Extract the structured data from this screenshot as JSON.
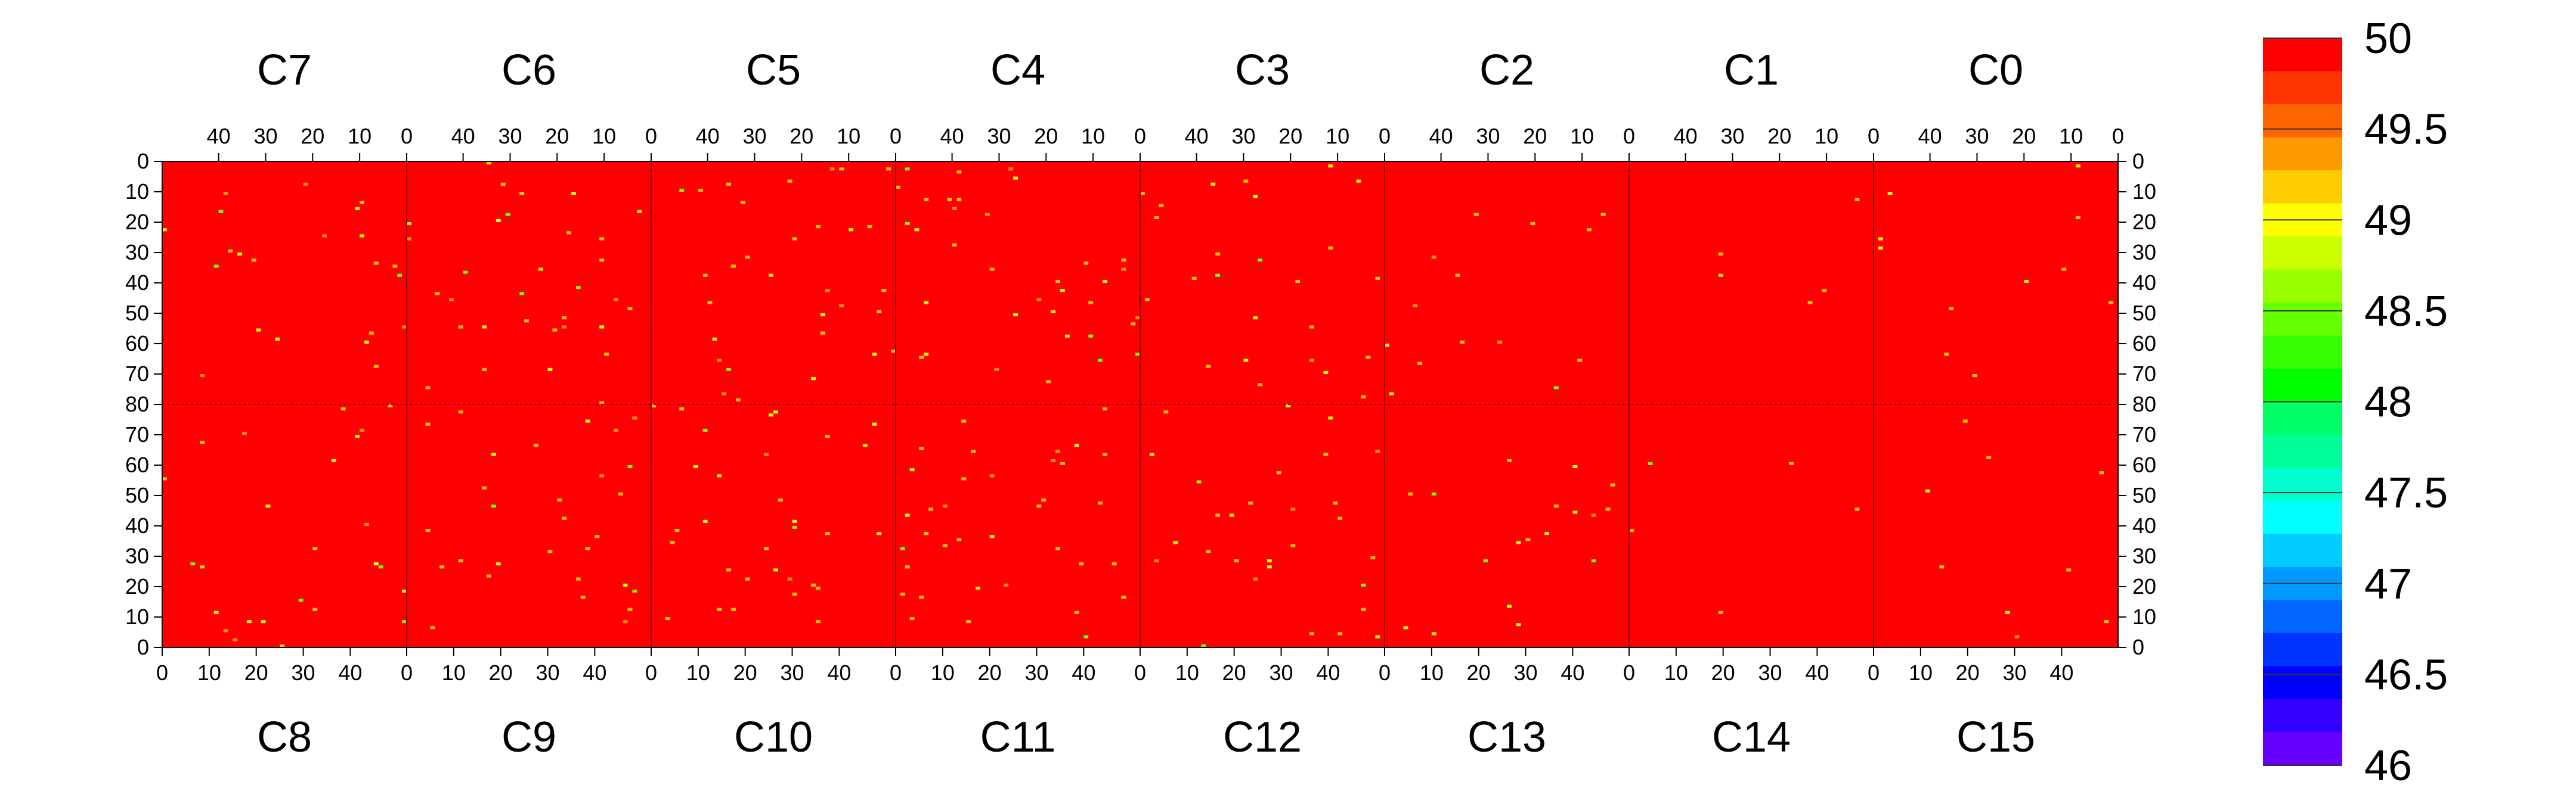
{
  "chart_data": {
    "type": "heatmap",
    "title": "",
    "xlabel": "",
    "ylabel": "",
    "grid": true,
    "background_value": 50,
    "color_scale": {
      "min": 46,
      "max": 50,
      "tick_labels": [
        "50",
        "49.5",
        "49",
        "48.5",
        "48",
        "47.5",
        "47",
        "46.5",
        "46"
      ],
      "tick_values": [
        50,
        49.5,
        49,
        48.5,
        48,
        47.5,
        47,
        46.5,
        46
      ],
      "colors": [
        "#ff0000",
        "#ff3300",
        "#ff6600",
        "#ff9900",
        "#ffcc00",
        "#ffff00",
        "#ccff00",
        "#99ff00",
        "#66ff00",
        "#33ff00",
        "#00ff00",
        "#00ff66",
        "#00ff99",
        "#00ffcc",
        "#00ffff",
        "#00ccff",
        "#0099ff",
        "#0066ff",
        "#0033ff",
        "#0000ff",
        "#3300ff",
        "#6600ff"
      ]
    },
    "top_row": {
      "chips": [
        "C7",
        "C6",
        "C5",
        "C4",
        "C3",
        "C2",
        "C1",
        "C0"
      ],
      "x_tick_labels": [
        "40",
        "30",
        "20",
        "10",
        "0"
      ],
      "x_tick_values": [
        40,
        30,
        20,
        10,
        0
      ],
      "x_direction": "reversed",
      "x_range": [
        0,
        52
      ]
    },
    "bottom_row": {
      "chips": [
        "C8",
        "C9",
        "C10",
        "C11",
        "C12",
        "C13",
        "C14",
        "C15"
      ],
      "x_tick_labels": [
        "0",
        "10",
        "20",
        "30",
        "40"
      ],
      "x_tick_values": [
        0,
        10,
        20,
        30,
        40
      ],
      "x_direction": "normal",
      "x_range": [
        0,
        52
      ]
    },
    "y_axis": {
      "top_half_labels": [
        "0",
        "10",
        "20",
        "30",
        "40",
        "50",
        "60",
        "70",
        "80"
      ],
      "top_half_values": [
        0,
        10,
        20,
        30,
        40,
        50,
        60,
        70,
        80
      ],
      "bottom_half_labels": [
        "70",
        "60",
        "50",
        "40",
        "30",
        "20",
        "10",
        "0"
      ],
      "bottom_half_values": [
        70,
        60,
        50,
        40,
        30,
        20,
        10,
        0
      ],
      "y_range": [
        0,
        80
      ]
    },
    "pixel_density_per_chip": [
      0.06,
      0.09,
      0.09,
      0.1,
      0.07,
      0.04,
      0.015,
      0.03,
      0.07,
      0.08,
      0.09,
      0.1,
      0.08,
      0.05,
      0.015,
      0.025
    ]
  }
}
